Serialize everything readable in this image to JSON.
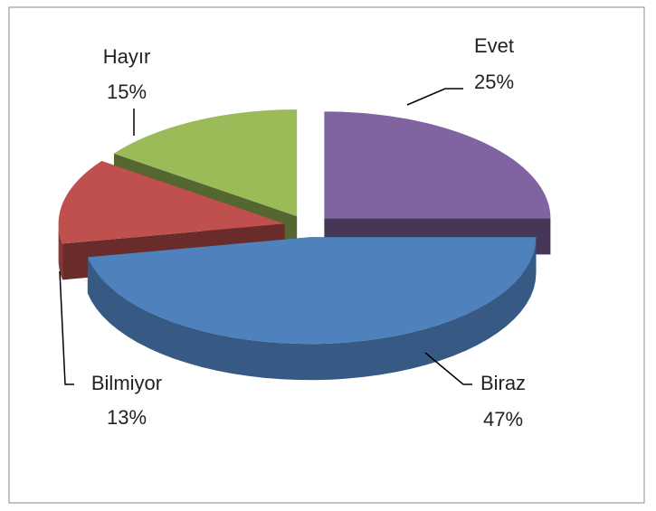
{
  "chart_data": {
    "type": "pie",
    "categories": [
      "Evet",
      "Biraz",
      "Bilmiyor",
      "Hayır"
    ],
    "values": [
      25,
      47,
      13,
      15
    ],
    "value_labels": [
      "25%",
      "47%",
      "13%",
      "15%"
    ],
    "colors": [
      "#8064a2",
      "#4f81bd",
      "#c0504d",
      "#9bbb59"
    ]
  }
}
